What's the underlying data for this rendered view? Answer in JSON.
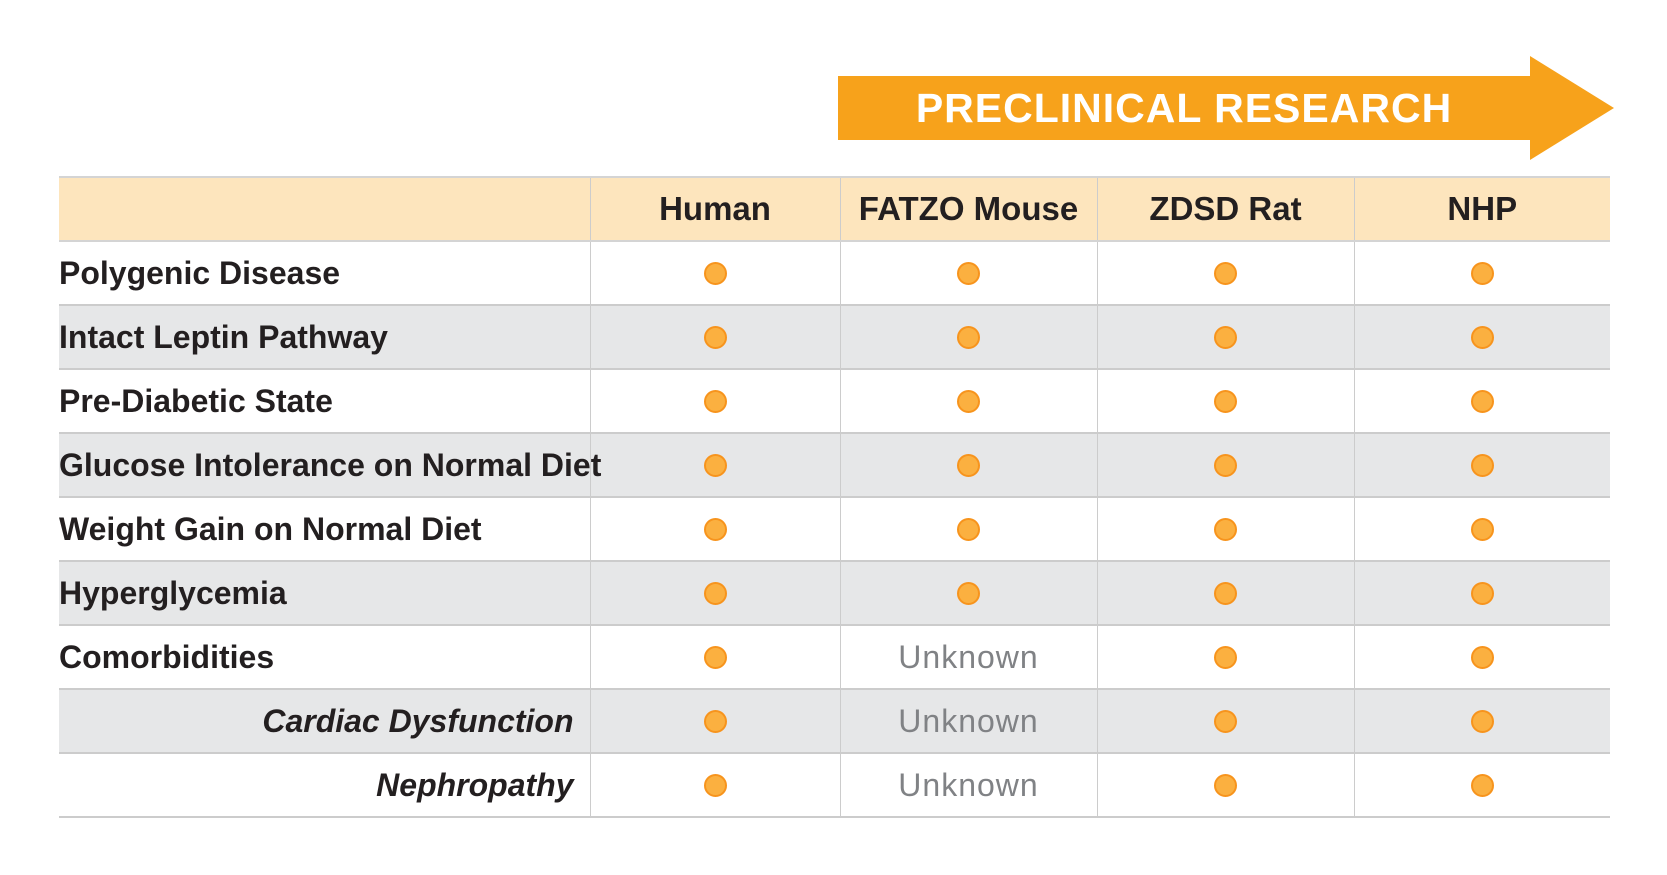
{
  "banner": {
    "label": "PRECLINICAL RESEARCH",
    "color": "#f7a21b"
  },
  "columns": [
    "",
    "Human",
    "FATZO Mouse",
    "ZDSD Rat",
    "NHP"
  ],
  "rows": [
    {
      "label": "Polygenic Disease",
      "sub": false,
      "cells": [
        "dot",
        "dot",
        "dot",
        "dot"
      ]
    },
    {
      "label": "Intact Leptin Pathway",
      "sub": false,
      "cells": [
        "dot",
        "dot",
        "dot",
        "dot"
      ]
    },
    {
      "label": "Pre-Diabetic State",
      "sub": false,
      "cells": [
        "dot",
        "dot",
        "dot",
        "dot"
      ]
    },
    {
      "label": "Glucose Intolerance on Normal Diet",
      "sub": false,
      "cells": [
        "dot",
        "dot",
        "dot",
        "dot"
      ]
    },
    {
      "label": "Weight Gain on Normal Diet",
      "sub": false,
      "cells": [
        "dot",
        "dot",
        "dot",
        "dot"
      ]
    },
    {
      "label": "Hyperglycemia",
      "sub": false,
      "cells": [
        "dot",
        "dot",
        "dot",
        "dot"
      ]
    },
    {
      "label": "Comorbidities",
      "sub": false,
      "cells": [
        "dot",
        "Unknown",
        "dot",
        "dot"
      ]
    },
    {
      "label": "Cardiac Dysfunction",
      "sub": true,
      "cells": [
        "dot",
        "Unknown",
        "dot",
        "dot"
      ]
    },
    {
      "label": "Nephropathy",
      "sub": true,
      "cells": [
        "dot",
        "Unknown",
        "dot",
        "dot"
      ]
    }
  ],
  "colors": {
    "header_bg": "#fde5bd",
    "alt_row_bg": "#e6e7e8",
    "dot": "#fbb040"
  }
}
